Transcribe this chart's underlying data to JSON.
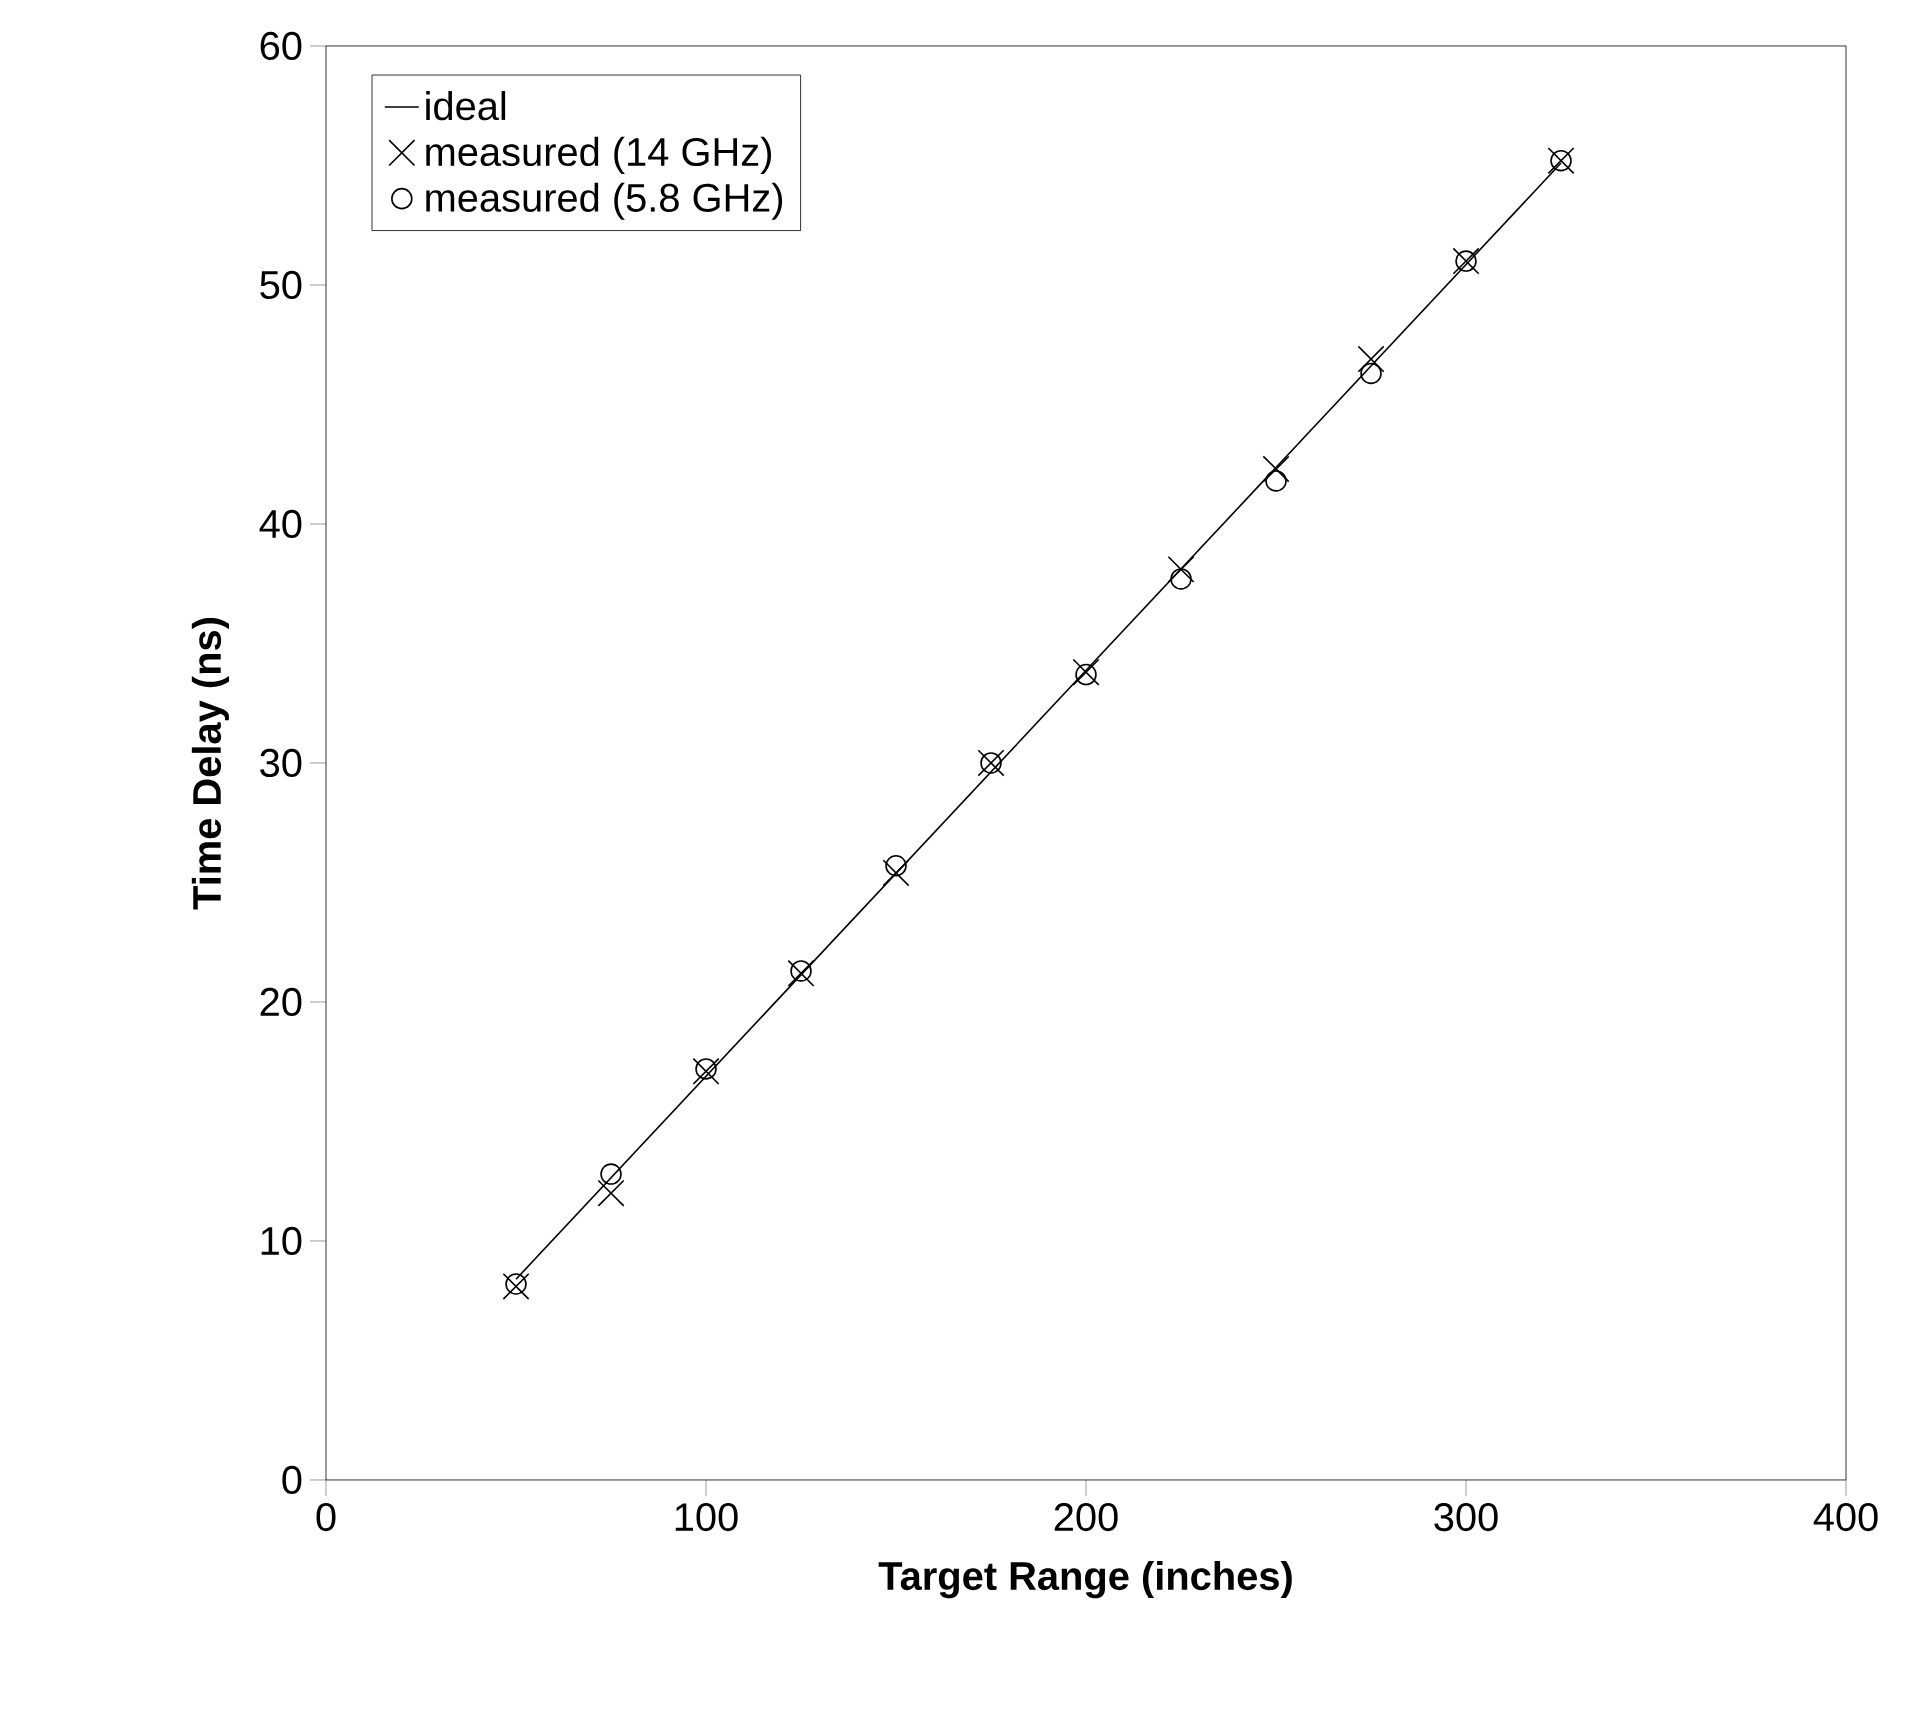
{
  "chart_data": {
    "type": "scatter",
    "xlabel": "Target Range (inches)",
    "ylabel": "Time Delay (ns)",
    "xlim": [
      0,
      400
    ],
    "ylim": [
      0,
      60
    ],
    "xticks": [
      0,
      100,
      200,
      300,
      400
    ],
    "yticks": [
      0,
      10,
      20,
      30,
      40,
      50,
      60
    ],
    "grid": false,
    "legend": "top left",
    "series": [
      {
        "name": "ideal",
        "type": "line",
        "color": "#000000",
        "marker": "none",
        "line_style": "solid",
        "x": [
          50,
          325
        ],
        "values": [
          8.4,
          55.1
        ]
      },
      {
        "name": "measured (14 GHz)",
        "color": "#000000",
        "marker": "cross",
        "x": [
          50,
          75,
          100,
          125,
          150,
          175,
          200,
          225,
          250,
          275,
          300,
          325
        ],
        "values": [
          8.1,
          12.0,
          17.1,
          21.2,
          25.4,
          30.0,
          33.8,
          38.1,
          42.3,
          46.9,
          51.0,
          55.2
        ]
      },
      {
        "name": "measured (5.8 GHz)",
        "color": "#000000",
        "marker": "circle",
        "x": [
          50,
          75,
          100,
          125,
          150,
          175,
          200,
          225,
          250,
          275,
          300,
          325
        ],
        "values": [
          8.2,
          12.8,
          17.2,
          21.3,
          25.7,
          30.0,
          33.7,
          37.7,
          41.8,
          46.3,
          51.0,
          55.2
        ]
      }
    ]
  }
}
